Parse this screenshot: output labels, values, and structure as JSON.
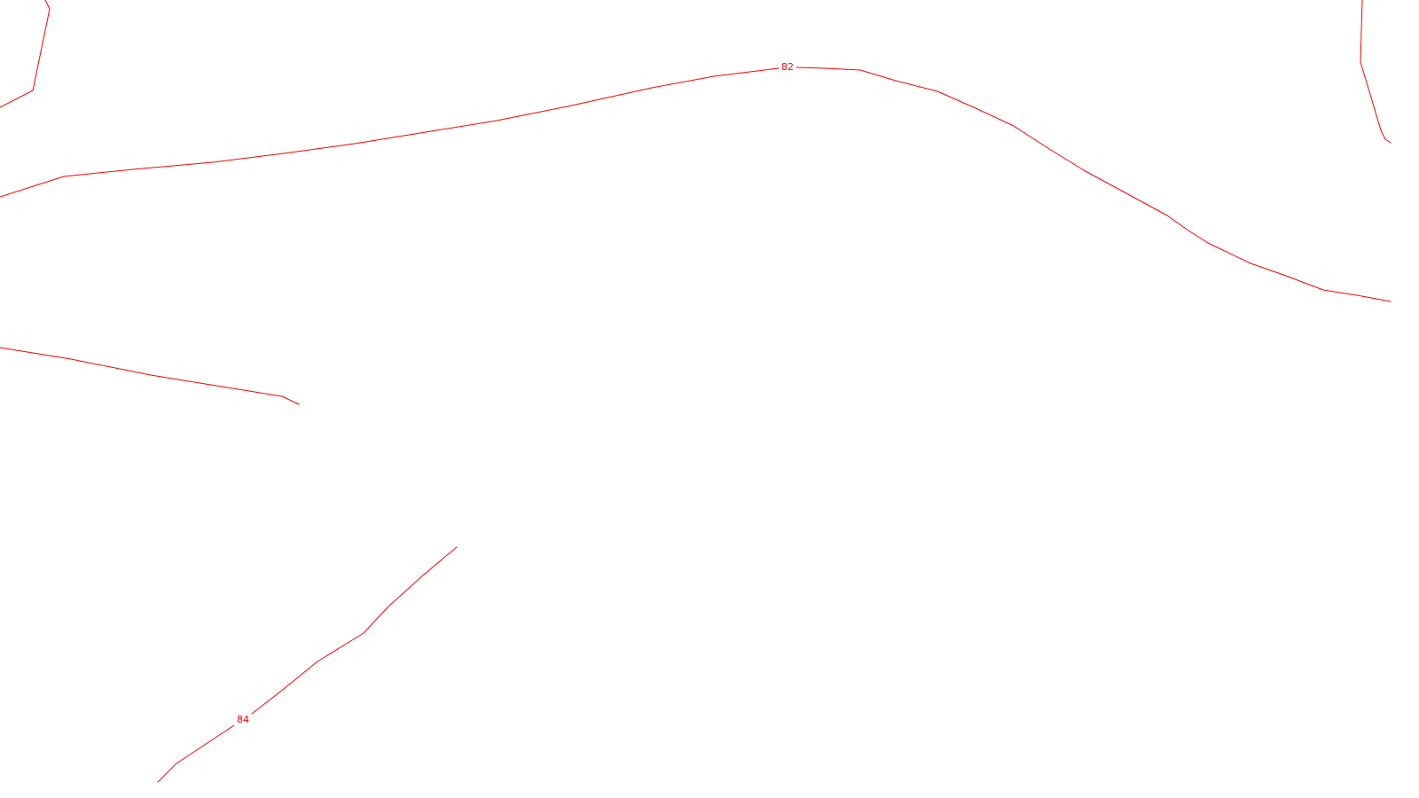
{
  "map": {
    "line_color": "#ff0000",
    "background_color": "#ffffff",
    "contours": [
      {
        "id": "82",
        "label": "82"
      },
      {
        "id": "84",
        "label": "84"
      },
      {
        "id": "unlabeled-top-left"
      },
      {
        "id": "unlabeled-mid-left"
      },
      {
        "id": "unlabeled-top-right"
      }
    ]
  }
}
